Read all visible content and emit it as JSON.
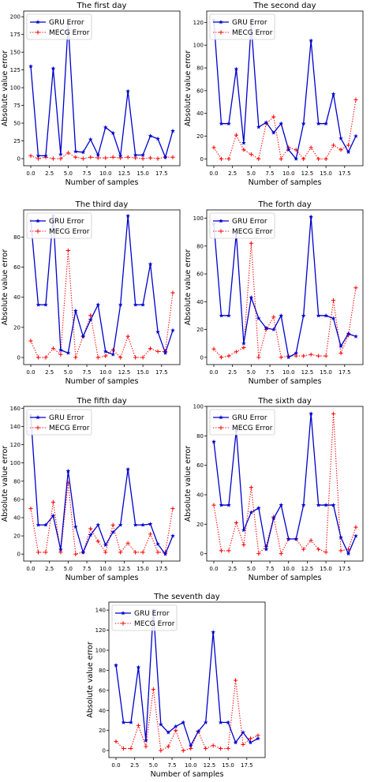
{
  "chart_data": [
    {
      "type": "line",
      "title": "The first day",
      "xlabel": "Number of samples",
      "ylabel": "Absolute value error",
      "xlim": [
        -0.95,
        19.95
      ],
      "ylim": [
        -10,
        208
      ],
      "xticks": [
        0.0,
        2.5,
        5.0,
        7.5,
        10.0,
        12.5,
        15.0,
        17.5
      ],
      "xtick_labels": [
        "0.0",
        "2.5",
        "5.0",
        "7.5",
        "10.0",
        "12.5",
        "15.0",
        "17.5"
      ],
      "yticks": [
        0,
        25,
        50,
        75,
        100,
        125,
        150,
        175,
        200
      ],
      "ytick_labels": [
        "0",
        "25",
        "50",
        "75",
        "100",
        "125",
        "150",
        "175",
        "200"
      ],
      "legend": "top-left",
      "x": [
        0,
        1,
        2,
        3,
        4,
        5,
        6,
        7,
        8,
        9,
        10,
        11,
        12,
        13,
        14,
        15,
        16,
        17,
        18,
        19
      ],
      "series": [
        {
          "name": "GRU Error",
          "color": "#0000cc",
          "style": "solid",
          "marker": "star",
          "values": [
            130,
            4,
            4,
            127,
            6,
            190,
            10,
            9,
            27,
            5,
            44,
            36,
            4,
            95,
            5,
            5,
            32,
            28,
            2,
            39
          ]
        },
        {
          "name": "MECG Error",
          "color": "#ff0000",
          "style": "dotted",
          "marker": "plus",
          "values": [
            4,
            0,
            2,
            0,
            0,
            8,
            2,
            0,
            2,
            1,
            1,
            2,
            1,
            2,
            1,
            0,
            1,
            0,
            2,
            2
          ]
        }
      ]
    },
    {
      "type": "line",
      "title": "The second day",
      "xlabel": "Number of samples",
      "ylabel": "Absolute value error",
      "xlim": [
        -0.95,
        19.95
      ],
      "ylim": [
        -6,
        130
      ],
      "xticks": [
        0.0,
        2.5,
        5.0,
        7.5,
        10.0,
        12.5,
        15.0,
        17.5
      ],
      "xtick_labels": [
        "0.0",
        "2.5",
        "5.0",
        "7.5",
        "10.0",
        "12.5",
        "15.0",
        "17.5"
      ],
      "yticks": [
        0,
        20,
        40,
        60,
        80,
        100,
        120
      ],
      "ytick_labels": [
        "0",
        "20",
        "40",
        "60",
        "80",
        "100",
        "120"
      ],
      "legend": "top-left",
      "x": [
        0,
        1,
        2,
        3,
        4,
        5,
        6,
        7,
        8,
        9,
        10,
        11,
        12,
        13,
        14,
        15,
        16,
        17,
        18,
        19
      ],
      "series": [
        {
          "name": "GRU Error",
          "color": "#0000cc",
          "style": "solid",
          "marker": "star",
          "values": [
            122,
            31,
            31,
            79,
            14,
            118,
            28,
            32,
            23,
            31,
            8,
            0,
            31,
            104,
            31,
            31,
            57,
            18,
            6,
            20
          ]
        },
        {
          "name": "MECG Error",
          "color": "#ff0000",
          "style": "dotted",
          "marker": "plus",
          "values": [
            10,
            0,
            0,
            21,
            8,
            4,
            0,
            31,
            37,
            0,
            10,
            8,
            0,
            10,
            0,
            0,
            12,
            8,
            12,
            52
          ]
        }
      ]
    },
    {
      "type": "line",
      "title": "The third day",
      "xlabel": "Number of samples",
      "ylabel": "Absolute value error",
      "xlim": [
        -0.95,
        19.95
      ],
      "ylim": [
        -4.7,
        98
      ],
      "xticks": [
        0.0,
        2.5,
        5.0,
        7.5,
        10.0,
        12.5,
        15.0,
        17.5
      ],
      "xtick_labels": [
        "0.0",
        "2.5",
        "5.0",
        "7.5",
        "10.0",
        "12.5",
        "15.0",
        "17.5"
      ],
      "yticks": [
        0,
        20,
        40,
        60,
        80
      ],
      "ytick_labels": [
        "0",
        "20",
        "40",
        "60",
        "80"
      ],
      "legend": "top-left",
      "x": [
        0,
        1,
        2,
        3,
        4,
        5,
        6,
        7,
        8,
        9,
        10,
        11,
        12,
        13,
        14,
        15,
        16,
        17,
        18,
        19
      ],
      "series": [
        {
          "name": "GRU Error",
          "color": "#0000cc",
          "style": "solid",
          "marker": "star",
          "values": [
            91,
            35,
            35,
            94,
            5,
            3,
            31,
            14,
            25,
            35,
            4,
            2,
            35,
            94,
            35,
            35,
            62,
            17,
            3,
            18
          ]
        },
        {
          "name": "MECG Error",
          "color": "#ff0000",
          "style": "dotted",
          "marker": "plus",
          "values": [
            11,
            0,
            0,
            6,
            2,
            71,
            0,
            14,
            28,
            0,
            1,
            5,
            0,
            14,
            0,
            0,
            6,
            4,
            4,
            43
          ]
        }
      ]
    },
    {
      "type": "line",
      "title": "The forth day",
      "xlabel": "Number of samples",
      "ylabel": "Absolute value error",
      "xlim": [
        -0.95,
        19.95
      ],
      "ylim": [
        -5.2,
        106
      ],
      "xticks": [
        0.0,
        2.5,
        5.0,
        7.5,
        10.0,
        12.5,
        15.0,
        17.5
      ],
      "xtick_labels": [
        "0.0",
        "2.5",
        "5.0",
        "7.5",
        "10.0",
        "12.5",
        "15.0",
        "17.5"
      ],
      "yticks": [
        0,
        20,
        40,
        60,
        80,
        100
      ],
      "ytick_labels": [
        "0",
        "20",
        "40",
        "60",
        "80",
        "100"
      ],
      "legend": "top-left",
      "x": [
        0,
        1,
        2,
        3,
        4,
        5,
        6,
        7,
        8,
        9,
        10,
        11,
        12,
        13,
        14,
        15,
        16,
        17,
        18,
        19
      ],
      "series": [
        {
          "name": "GRU Error",
          "color": "#0000cc",
          "style": "solid",
          "marker": "star",
          "values": [
            96,
            30,
            30,
            89,
            10,
            43,
            28,
            21,
            20,
            30,
            0,
            3,
            30,
            101,
            30,
            30,
            28,
            8,
            17,
            15
          ]
        },
        {
          "name": "MECG Error",
          "color": "#ff0000",
          "style": "dotted",
          "marker": "plus",
          "values": [
            6,
            0,
            1,
            4,
            7,
            82,
            0,
            20,
            29,
            0,
            1,
            1,
            1,
            2,
            1,
            1,
            41,
            3,
            16,
            50
          ]
        }
      ]
    },
    {
      "type": "line",
      "title": "The fifth day",
      "xlabel": "Number of samples",
      "ylabel": "Absolute value error",
      "xlim": [
        -0.95,
        19.95
      ],
      "ylim": [
        -7.6,
        162
      ],
      "xticks": [
        0.0,
        2.5,
        5.0,
        7.5,
        10.0,
        12.5,
        15.0,
        17.5
      ],
      "xtick_labels": [
        "0.0",
        "2.5",
        "5.0",
        "7.5",
        "10.0",
        "12.5",
        "15.0",
        "17.5"
      ],
      "yticks": [
        0,
        20,
        40,
        60,
        80,
        100,
        120,
        140,
        160
      ],
      "ytick_labels": [
        "0",
        "20",
        "40",
        "60",
        "80",
        "100",
        "120",
        "140",
        "160"
      ],
      "legend": "top-left",
      "x": [
        0,
        1,
        2,
        3,
        4,
        5,
        6,
        7,
        8,
        9,
        10,
        11,
        12,
        13,
        14,
        15,
        16,
        17,
        18,
        19
      ],
      "series": [
        {
          "name": "GRU Error",
          "color": "#0000cc",
          "style": "solid",
          "marker": "star",
          "values": [
            152,
            32,
            32,
            42,
            5,
            91,
            30,
            2,
            21,
            32,
            10,
            24,
            32,
            93,
            32,
            32,
            33,
            11,
            0,
            20
          ]
        },
        {
          "name": "MECG Error",
          "color": "#ff0000",
          "style": "dotted",
          "marker": "plus",
          "values": [
            50,
            2,
            2,
            57,
            2,
            78,
            0,
            2,
            28,
            14,
            2,
            32,
            2,
            12,
            2,
            2,
            22,
            2,
            2,
            50
          ]
        }
      ]
    },
    {
      "type": "line",
      "title": "The sixth day",
      "xlabel": "Number of samples",
      "ylabel": "Absolute value error",
      "xlim": [
        -0.95,
        19.95
      ],
      "ylim": [
        -5,
        100
      ],
      "xticks": [
        0.0,
        2.5,
        5.0,
        7.5,
        10.0,
        12.5,
        15.0,
        17.5
      ],
      "xtick_labels": [
        "0.0",
        "2.5",
        "5.0",
        "7.5",
        "10.0",
        "12.5",
        "15.0",
        "17.5"
      ],
      "yticks": [
        0,
        20,
        40,
        60,
        80,
        100
      ],
      "ytick_labels": [
        "0",
        "20",
        "40",
        "60",
        "80",
        "100"
      ],
      "legend": "top-left",
      "x": [
        0,
        1,
        2,
        3,
        4,
        5,
        6,
        7,
        8,
        9,
        10,
        11,
        12,
        13,
        14,
        15,
        16,
        17,
        18,
        19
      ],
      "series": [
        {
          "name": "GRU Error",
          "color": "#0000cc",
          "style": "solid",
          "marker": "star",
          "values": [
            76,
            33,
            33,
            84,
            16,
            28,
            31,
            3,
            24,
            33,
            10,
            10,
            33,
            95,
            33,
            33,
            33,
            11,
            0,
            12
          ]
        },
        {
          "name": "MECG Error",
          "color": "#ff0000",
          "style": "dotted",
          "marker": "plus",
          "values": [
            33,
            2,
            2,
            21,
            6,
            45,
            0,
            5,
            25,
            0,
            10,
            10,
            3,
            9,
            3,
            1,
            95,
            2,
            3,
            18
          ]
        }
      ]
    },
    {
      "type": "line",
      "title": "The seventh day",
      "xlabel": "Number of samples",
      "ylabel": "Absolute value error",
      "xlim": [
        -0.95,
        19.95
      ],
      "ylim": [
        -7,
        148
      ],
      "xticks": [
        0.0,
        2.5,
        5.0,
        7.5,
        10.0,
        12.5,
        15.0,
        17.5
      ],
      "xtick_labels": [
        "0.0",
        "2.5",
        "5.0",
        "7.5",
        "10.0",
        "12.5",
        "15.0",
        "17.5"
      ],
      "yticks": [
        0,
        20,
        40,
        60,
        80,
        100,
        120,
        140
      ],
      "ytick_labels": [
        "0",
        "20",
        "40",
        "60",
        "80",
        "100",
        "120",
        "140"
      ],
      "legend": "top-left",
      "x": [
        0,
        1,
        2,
        3,
        4,
        5,
        6,
        7,
        8,
        9,
        10,
        11,
        12,
        13,
        14,
        15,
        16,
        17,
        18,
        19
      ],
      "series": [
        {
          "name": "GRU Error",
          "color": "#0000cc",
          "style": "solid",
          "marker": "star",
          "values": [
            85,
            28,
            28,
            83,
            10,
            140,
            26,
            18,
            24,
            28,
            5,
            19,
            28,
            118,
            28,
            28,
            8,
            18,
            8,
            12
          ]
        },
        {
          "name": "MECG Error",
          "color": "#ff0000",
          "style": "dotted",
          "marker": "plus",
          "values": [
            9,
            2,
            2,
            25,
            4,
            61,
            0,
            4,
            20,
            0,
            2,
            19,
            2,
            5,
            2,
            2,
            70,
            6,
            12,
            15
          ]
        }
      ]
    }
  ]
}
